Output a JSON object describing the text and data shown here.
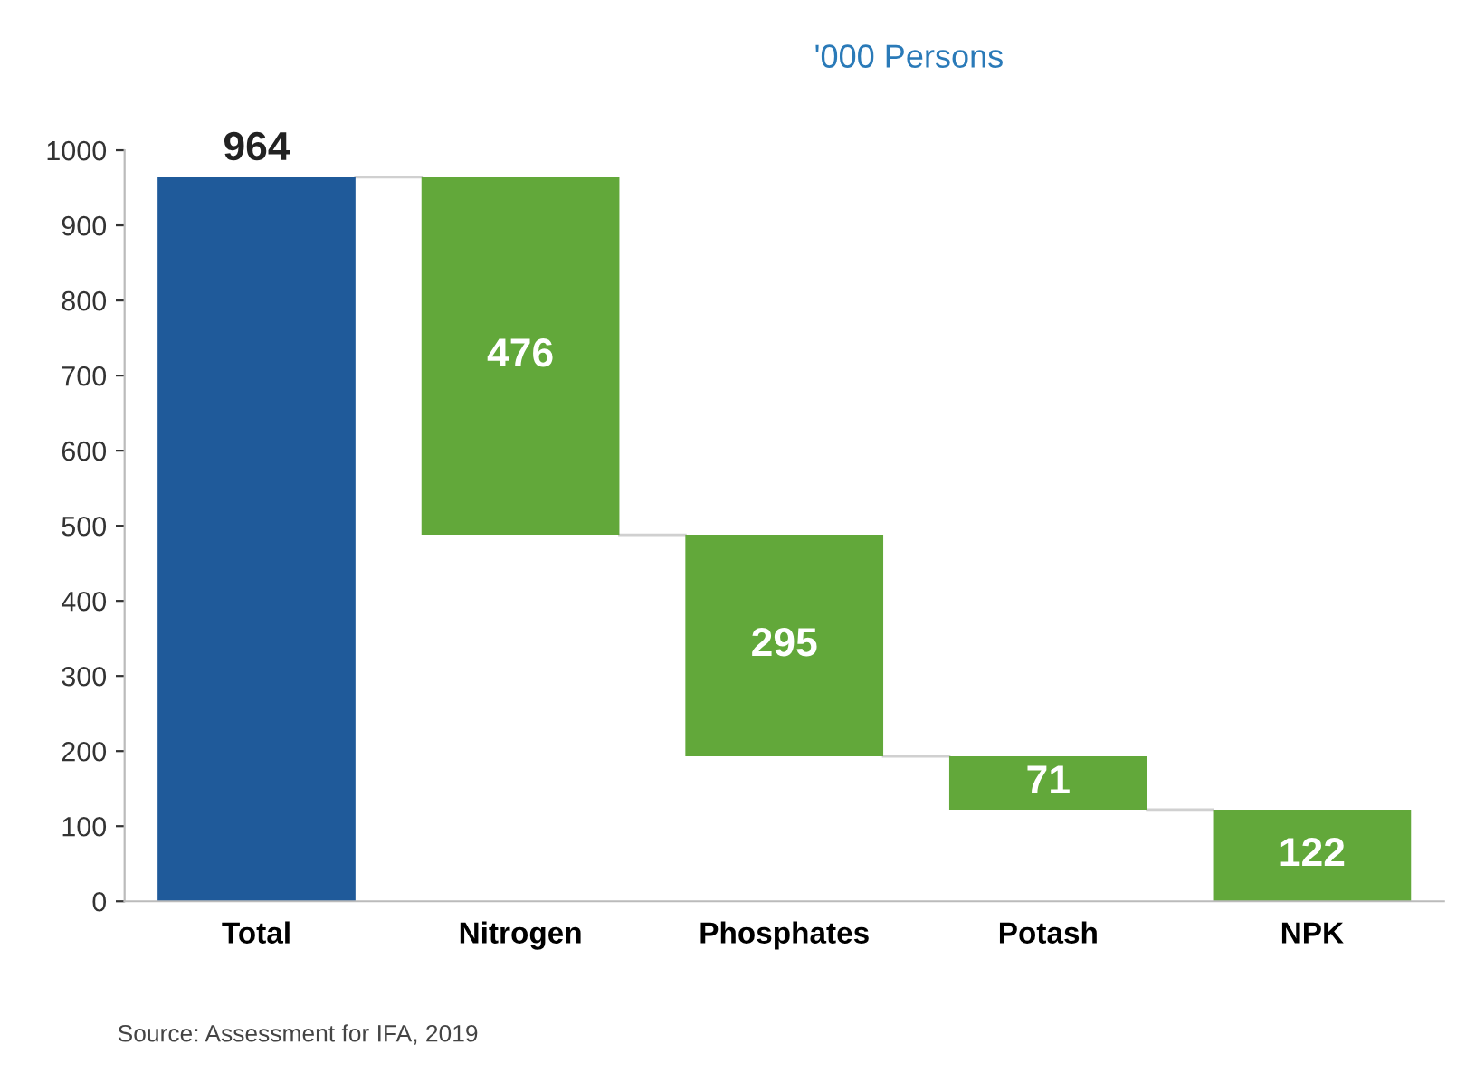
{
  "chart_data": {
    "type": "bar",
    "title": "'000 Persons",
    "categories": [
      "Total",
      "Nitrogen",
      "Phosphates",
      "Potash",
      "NPK"
    ],
    "values": [
      964,
      476,
      295,
      71,
      122
    ],
    "base": [
      0,
      488,
      193,
      122,
      0
    ],
    "colors": [
      "#1f5a9a",
      "#62a83a",
      "#62a83a",
      "#62a83a",
      "#62a83a"
    ],
    "ylim": [
      0,
      1000
    ],
    "yticks": [
      0,
      100,
      200,
      300,
      400,
      500,
      600,
      700,
      800,
      900,
      1000
    ],
    "data_labels": true,
    "grid": false,
    "annotations": [
      "Source: Assessment for IFA, 2019"
    ]
  }
}
